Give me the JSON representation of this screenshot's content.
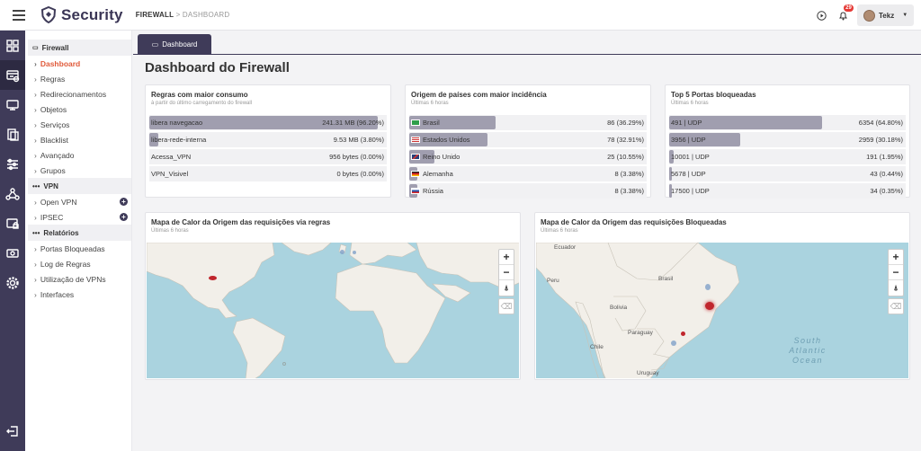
{
  "header": {
    "app_name": "Security",
    "crumb_section": "FIREWALL",
    "crumb_sep": " > ",
    "crumb_page": "DASHBOARD",
    "notif_count": "29",
    "user_name": "Tekz"
  },
  "sidebar": {
    "sec_firewall": "Firewall",
    "firewall_items": [
      "Dashboard",
      "Regras",
      "Redirecionamentos",
      "Objetos",
      "Serviços",
      "Blacklist",
      "Avançado",
      "Grupos"
    ],
    "sec_vpn": "VPN",
    "vpn_items": [
      "Open VPN",
      "IPSEC"
    ],
    "sec_reports": "Relatórios",
    "report_items": [
      "Portas Bloqueadas",
      "Log de Regras",
      "Utilização de VPNs",
      "Interfaces"
    ]
  },
  "tab": {
    "label": "Dashboard"
  },
  "page_title": "Dashboard do Firewall",
  "card_rules": {
    "title": "Regras com maior consumo",
    "subtitle": "à partir do último carregamento do firewall",
    "rows": [
      {
        "name": "libera navegacao",
        "value": "241.31 MB (96.20%)",
        "pct": 96.2
      },
      {
        "name": "libera-rede-interna",
        "value": "9.53 MB (3.80%)",
        "pct": 3.8
      },
      {
        "name": "Acessa_VPN",
        "value": "956 bytes (0.00%)",
        "pct": 0
      },
      {
        "name": "VPN_Visivel",
        "value": "0 bytes (0.00%)",
        "pct": 0
      }
    ]
  },
  "card_countries": {
    "title": "Origem de países com maior incidência",
    "subtitle": "Últimas 6 horas",
    "rows": [
      {
        "name": "Brasil",
        "value": "86 (36.29%)",
        "pct": 36.29,
        "flag": "br"
      },
      {
        "name": "Estados Unidos",
        "value": "78 (32.91%)",
        "pct": 32.91,
        "flag": "us"
      },
      {
        "name": "Reino Unido",
        "value": "25 (10.55%)",
        "pct": 10.55,
        "flag": "uk"
      },
      {
        "name": "Alemanha",
        "value": "8 (3.38%)",
        "pct": 3.38,
        "flag": "de"
      },
      {
        "name": "Rússia",
        "value": "8 (3.38%)",
        "pct": 3.38,
        "flag": "ru"
      }
    ]
  },
  "card_ports": {
    "title": "Top 5 Portas bloqueadas",
    "subtitle": "Últimas 6 horas",
    "rows": [
      {
        "name": "491 | UDP",
        "value": "6354 (64.80%)",
        "pct": 64.8
      },
      {
        "name": "3956 | UDP",
        "value": "2959 (30.18%)",
        "pct": 30.18
      },
      {
        "name": "10001 | UDP",
        "value": "191 (1.95%)",
        "pct": 1.95
      },
      {
        "name": "5678 | UDP",
        "value": "43 (0.44%)",
        "pct": 0.44
      },
      {
        "name": "17500 | UDP",
        "value": "34 (0.35%)",
        "pct": 0.35
      }
    ]
  },
  "map_rules": {
    "title": "Mapa de Calor da Origem das requisições via regras",
    "subtitle": "Últimas 6 horas"
  },
  "map_blocked": {
    "title": "Mapa de Calor da Origem das requisições Bloqueadas",
    "subtitle": "Últimas 6 horas",
    "labels": {
      "ecuador": "Ecuador",
      "brasil": "Brasil",
      "peru": "Peru",
      "bolivia": "Bolivia",
      "paraguay": "Paraguay",
      "chile": "Chile",
      "uruguay": "Uruguay",
      "ocean1": "South",
      "ocean2": "Atlantic",
      "ocean3": "Ocean"
    }
  },
  "map_controls": {
    "zoom_in": "+",
    "zoom_out": "−",
    "reset": "⍋",
    "erase": "⌫"
  },
  "colors": {
    "primary": "#3f3b59",
    "accent": "#e05a3a",
    "bar": "#a09eaf",
    "water": "#aad3df",
    "land": "#f2efe9",
    "heat": "#c0262d"
  }
}
